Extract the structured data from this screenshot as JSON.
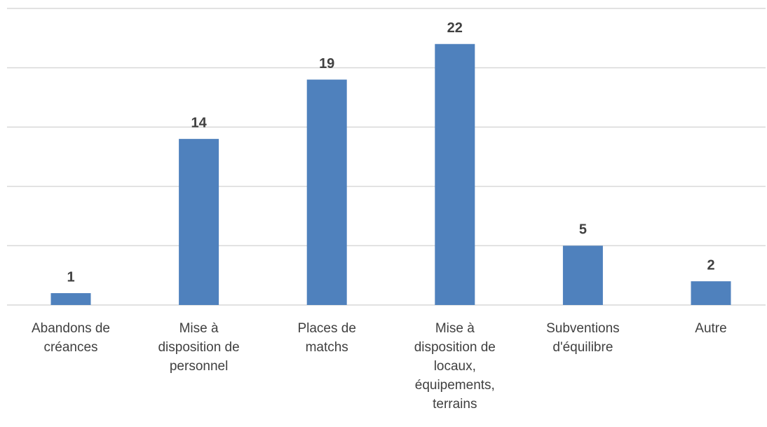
{
  "chart_data": {
    "type": "bar",
    "categories": [
      "Abandons de créances",
      "Mise à disposition de personnel",
      "Places de matchs",
      "Mise à disposition de locaux, équipements, terrains",
      "Subventions d'équilibre",
      "Autre"
    ],
    "values": [
      1,
      14,
      19,
      22,
      5,
      2
    ],
    "color": "#4f81bd",
    "ylim": [
      0,
      25
    ],
    "yticks": [
      0,
      5,
      10,
      15,
      20,
      25
    ],
    "grid": true
  }
}
